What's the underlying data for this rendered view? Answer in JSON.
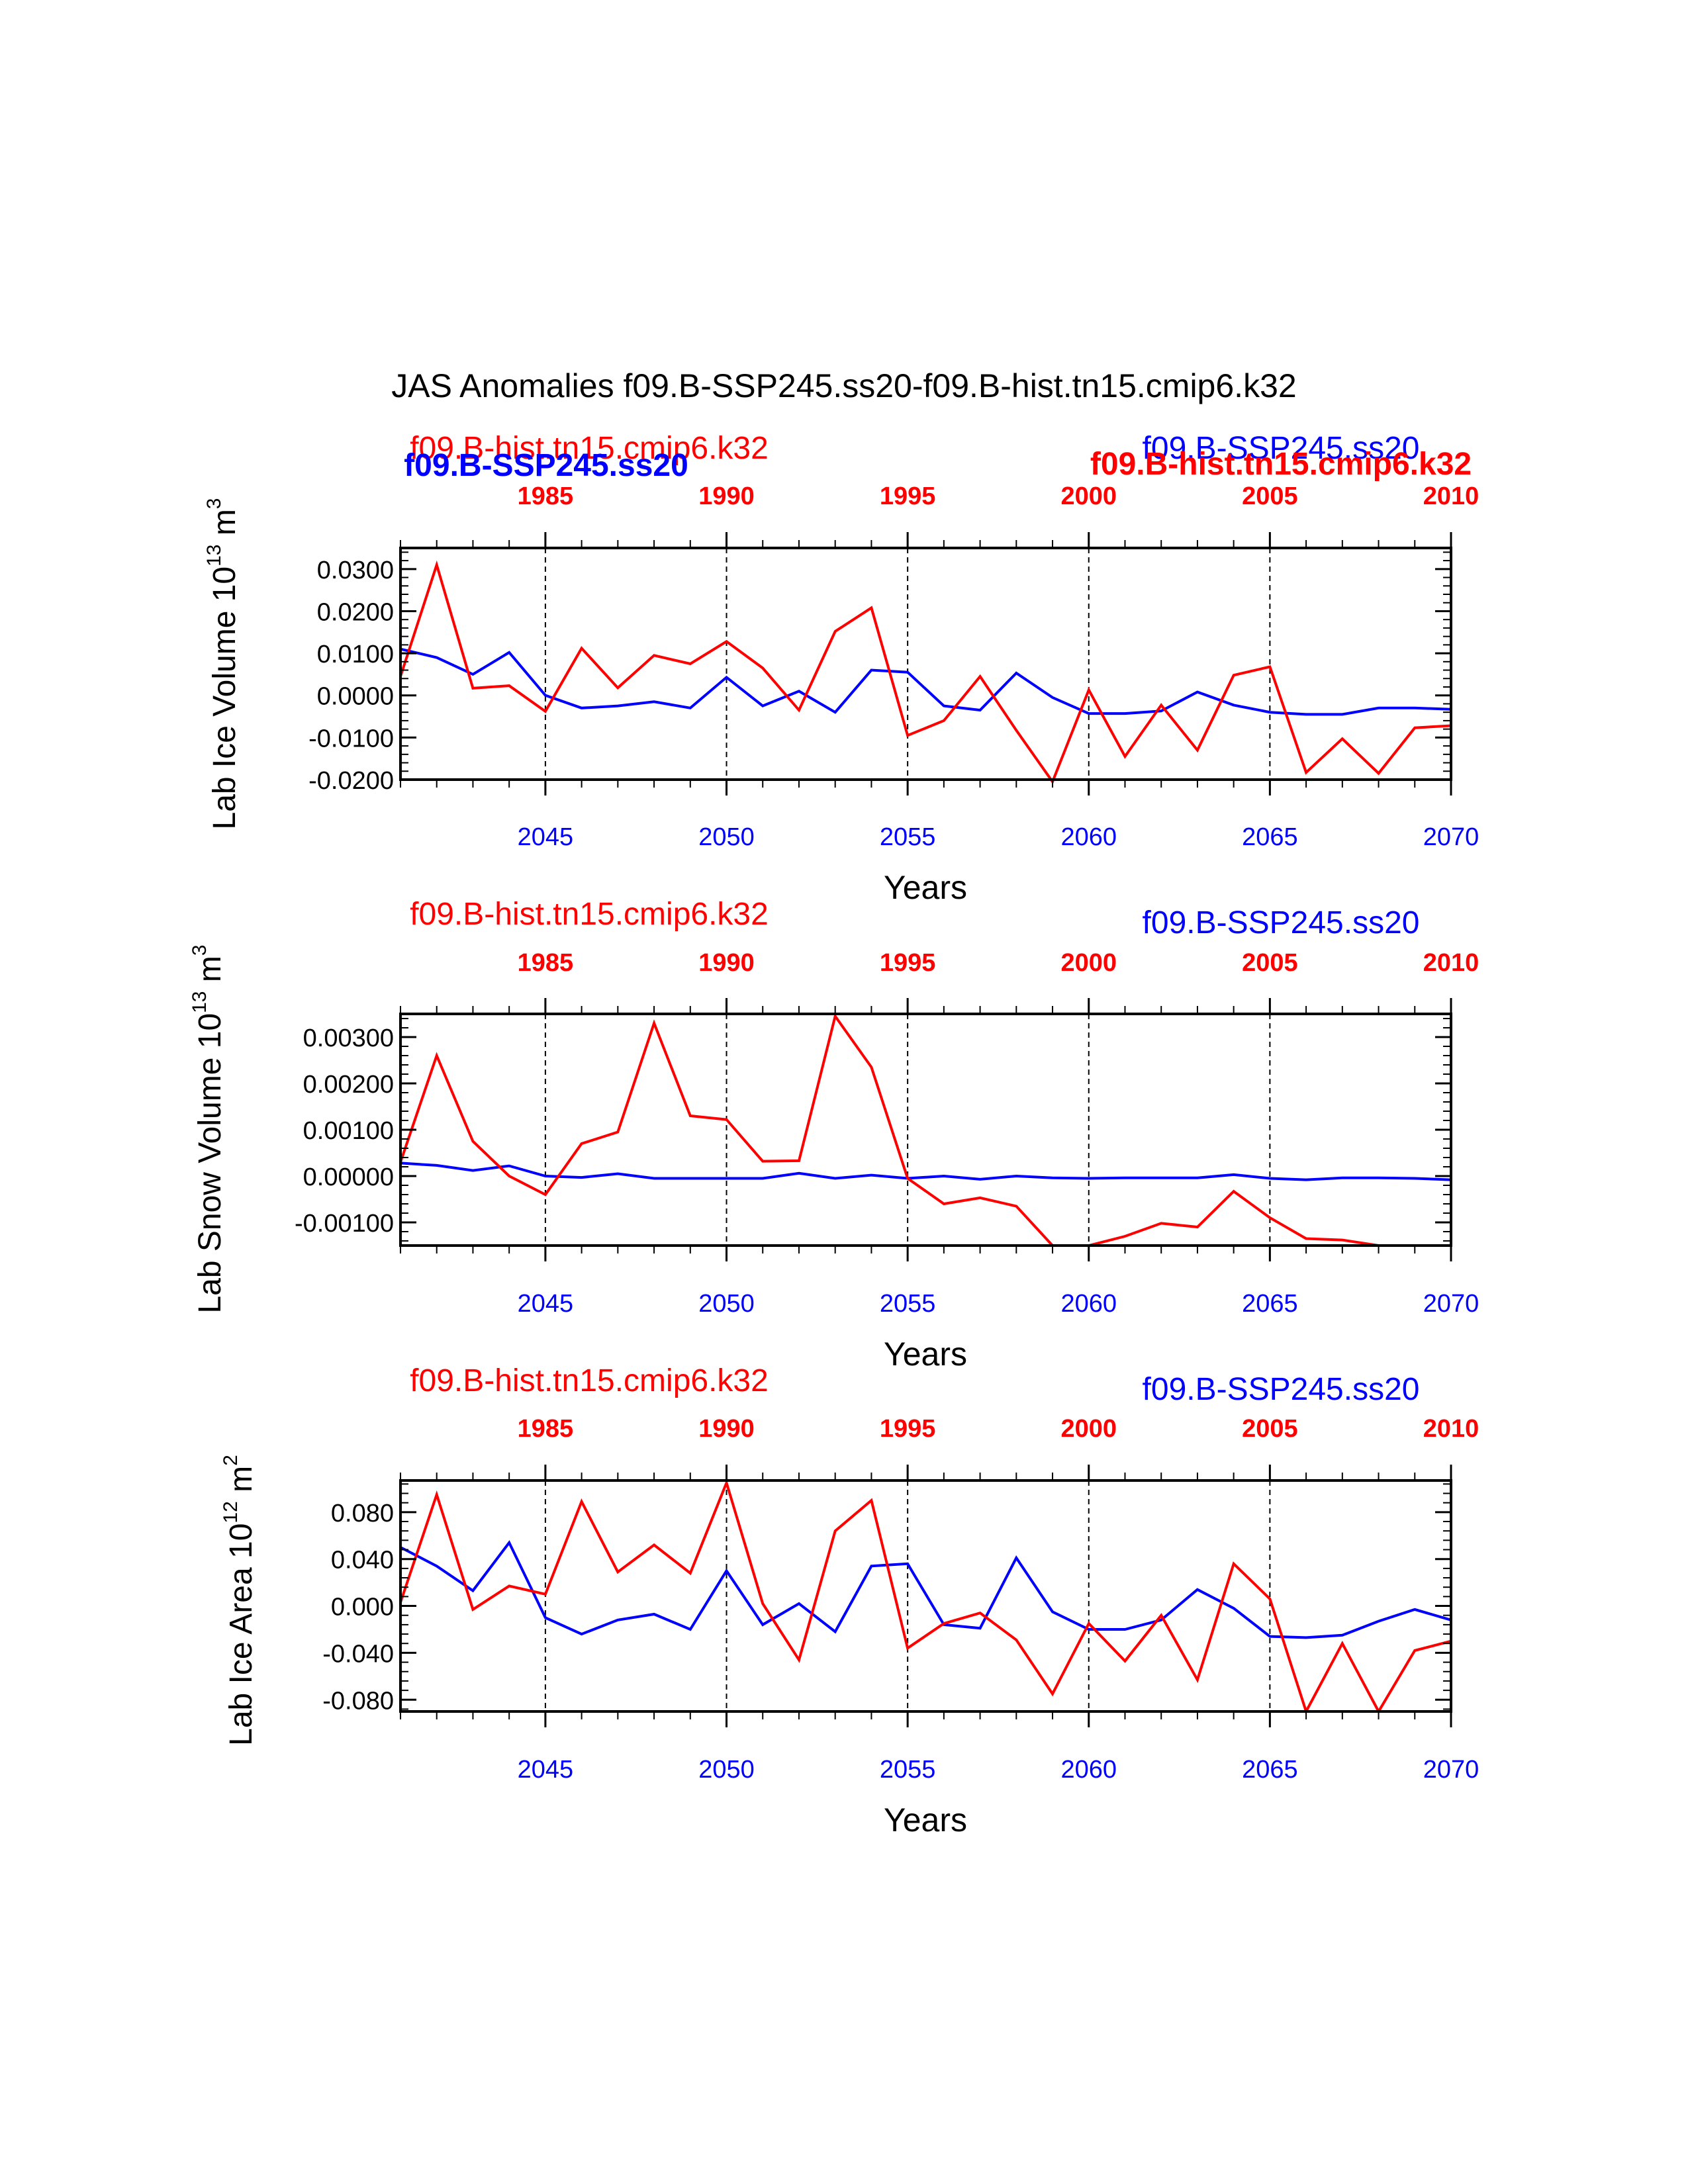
{
  "title": "JAS Anomalies f09.B-SSP245.ss20-f09.B-hist.tn15.cmip6.k32",
  "colors": {
    "ssp": "#0000ff",
    "hist": "#ff0000",
    "axis": "#000000"
  },
  "header_labels": {
    "panel1_bold_blue": "f09.B-SSP245.ss20",
    "panel1_bold_red": "f09.B-hist.tn15.cmip6.k32"
  },
  "chart_data": [
    {
      "type": "line",
      "ylabel": "Lab Ice Volume 10",
      "ylabel_exp": "13",
      "ylabel_unit": " m",
      "ylabel_unit_exp": "3",
      "xlabel": "Years",
      "ylim": [
        -0.02,
        0.035
      ],
      "yticks": [
        -0.02,
        -0.01,
        0.0,
        0.01,
        0.02,
        0.03
      ],
      "yticklabels": [
        "-0.0200",
        "-0.0100",
        "0.0000",
        "0.0100",
        "0.0200",
        "0.0300"
      ],
      "x_bottom": {
        "lim": [
          2041,
          2070
        ],
        "ticks": [
          "2045",
          "2050",
          "2055",
          "2060",
          "2065",
          "2070"
        ]
      },
      "x_top": {
        "lim": [
          1981,
          2010
        ],
        "ticks": [
          "1985",
          "1990",
          "1995",
          "2000",
          "2005",
          "2010"
        ]
      },
      "series": [
        {
          "name": "f09.B-SSP245.ss20",
          "color": "#0000ff",
          "values": [
            0.011,
            0.009,
            0.005,
            0.0102,
            0.0,
            -0.003,
            -0.0025,
            -0.0015,
            -0.003,
            0.0043,
            -0.0025,
            0.001,
            -0.004,
            0.006,
            0.0055,
            -0.0025,
            -0.0035,
            0.0053,
            -0.0005,
            -0.0043,
            -0.0043,
            -0.0037,
            0.0008,
            -0.0023,
            -0.004,
            -0.0045,
            -0.0045,
            -0.003,
            -0.003,
            -0.0033
          ]
        },
        {
          "name": "f09.B-hist.tn15.cmip6.k32",
          "color": "#ff0000",
          "values": [
            0.0045,
            0.031,
            0.0017,
            0.0023,
            -0.0038,
            0.0112,
            0.0018,
            0.0095,
            0.0075,
            0.0128,
            0.0065,
            -0.0035,
            0.0152,
            0.0208,
            -0.0095,
            -0.006,
            0.0045,
            -0.0083,
            -0.0205,
            0.0013,
            -0.0145,
            -0.0023,
            -0.013,
            0.0048,
            0.0068,
            -0.0183,
            -0.0103,
            -0.0185,
            -0.0077,
            -0.0072
          ]
        }
      ]
    },
    {
      "type": "line",
      "ylabel": "Lab Snow Volume 10",
      "ylabel_exp": "13",
      "ylabel_unit": " m",
      "ylabel_unit_exp": "3",
      "xlabel": "Years",
      "ylim": [
        -0.0015,
        0.0035
      ],
      "yticks": [
        -0.001,
        0.0,
        0.001,
        0.002,
        0.003
      ],
      "yticklabels": [
        "-0.00100",
        "0.00000",
        "0.00100",
        "0.00200",
        "0.00300"
      ],
      "x_bottom": {
        "lim": [
          2041,
          2070
        ],
        "ticks": [
          "2045",
          "2050",
          "2055",
          "2060",
          "2065",
          "2070"
        ]
      },
      "x_top": {
        "lim": [
          1981,
          2010
        ],
        "ticks": [
          "1985",
          "1990",
          "1995",
          "2000",
          "2005",
          "2010"
        ]
      },
      "series_labels": {
        "hist": "f09.B-hist.tn15.cmip6.k32",
        "ssp": "f09.B-SSP245.ss20"
      },
      "series": [
        {
          "name": "f09.B-SSP245.ss20",
          "color": "#0000ff",
          "values": [
            0.00028,
            0.00023,
            0.00012,
            0.00022,
            0.0,
            -3e-05,
            5e-05,
            -5e-05,
            -5e-05,
            -5e-05,
            -5e-05,
            6e-05,
            -5e-05,
            2e-05,
            -5e-05,
            0.0,
            -7e-05,
            0.0,
            -4e-05,
            -5e-05,
            -4e-05,
            -4e-05,
            -4e-05,
            3e-05,
            -5e-05,
            -8e-05,
            -4e-05,
            -4e-05,
            -5e-05,
            -8e-05
          ]
        },
        {
          "name": "f09.B-hist.tn15.cmip6.k32",
          "color": "#ff0000",
          "values": [
            0.0003,
            0.0026,
            0.00075,
            0.0,
            -0.0004,
            0.0007,
            0.00095,
            0.0033,
            0.0013,
            0.00122,
            0.00032,
            0.00033,
            0.00345,
            0.00235,
            -5e-05,
            -0.0006,
            -0.00047,
            -0.00065,
            -0.0015,
            -0.0015,
            -0.0013,
            -0.00102,
            -0.0011,
            -0.00033,
            -0.0009,
            -0.00135,
            -0.00138,
            -0.0015,
            -0.0015,
            -0.0015
          ]
        }
      ]
    },
    {
      "type": "line",
      "ylabel": "Lab Ice Area 10",
      "ylabel_exp": "12",
      "ylabel_unit": " m",
      "ylabel_unit_exp": "2",
      "xlabel": "Years",
      "ylim": [
        -0.09,
        0.107
      ],
      "yticks": [
        -0.08,
        -0.04,
        0.0,
        0.04,
        0.08
      ],
      "yticklabels": [
        "-0.080",
        "-0.040",
        "0.000",
        "0.040",
        "0.080"
      ],
      "x_bottom": {
        "lim": [
          2041,
          2070
        ],
        "ticks": [
          "2045",
          "2050",
          "2055",
          "2060",
          "2065",
          "2070"
        ]
      },
      "x_top": {
        "lim": [
          1981,
          2010
        ],
        "ticks": [
          "1985",
          "1990",
          "1995",
          "2000",
          "2005",
          "2010"
        ]
      },
      "series_labels": {
        "hist": "f09.B-hist.tn15.cmip6.k32",
        "ssp": "f09.B-SSP245.ss20"
      },
      "series": [
        {
          "name": "f09.B-SSP245.ss20",
          "color": "#0000ff",
          "values": [
            0.05,
            0.034,
            0.013,
            0.054,
            -0.01,
            -0.024,
            -0.012,
            -0.007,
            -0.02,
            0.03,
            -0.016,
            0.002,
            -0.022,
            0.034,
            0.036,
            -0.016,
            -0.019,
            0.041,
            -0.005,
            -0.02,
            -0.02,
            -0.012,
            0.014,
            -0.002,
            -0.026,
            -0.027,
            -0.025,
            -0.013,
            -0.003,
            -0.012
          ]
        },
        {
          "name": "f09.B-hist.tn15.cmip6.k32",
          "color": "#ff0000",
          "values": [
            0.003,
            0.095,
            -0.003,
            0.017,
            0.01,
            0.089,
            0.029,
            0.052,
            0.028,
            0.105,
            0.002,
            -0.046,
            0.064,
            0.09,
            -0.036,
            -0.015,
            -0.006,
            -0.029,
            -0.075,
            -0.015,
            -0.047,
            -0.008,
            -0.063,
            0.036,
            0.006,
            -0.09,
            -0.032,
            -0.09,
            -0.038,
            -0.03
          ]
        }
      ]
    }
  ]
}
